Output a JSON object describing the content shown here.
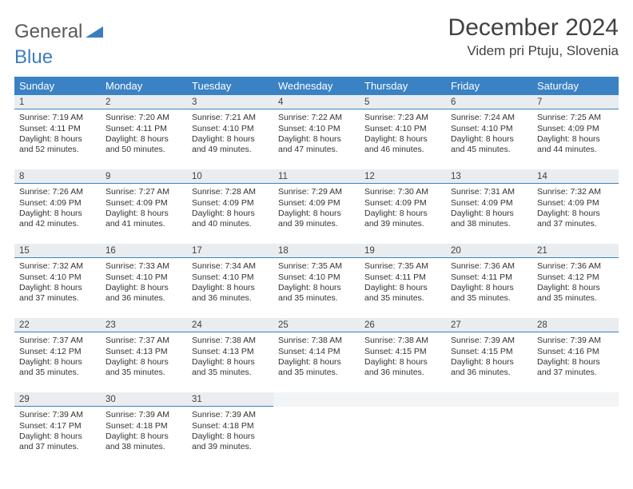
{
  "brand": {
    "word1": "General",
    "word2": "Blue"
  },
  "title": "December 2024",
  "location": "Videm pri Ptuju, Slovenia",
  "colors": {
    "header_bg": "#3a82c4",
    "daybar_bg": "#e9edf0",
    "daybar_border": "#3a82c4",
    "text": "#333333",
    "title_text": "#414141",
    "brand_gray": "#5a5a5a",
    "brand_blue": "#3a7ebf",
    "empty_bg": "#f2f4f6"
  },
  "weekdays": [
    "Sunday",
    "Monday",
    "Tuesday",
    "Wednesday",
    "Thursday",
    "Friday",
    "Saturday"
  ],
  "weeks": [
    [
      {
        "n": "1",
        "sr": "7:19 AM",
        "ss": "4:11 PM",
        "dl": "8 hours and 52 minutes."
      },
      {
        "n": "2",
        "sr": "7:20 AM",
        "ss": "4:11 PM",
        "dl": "8 hours and 50 minutes."
      },
      {
        "n": "3",
        "sr": "7:21 AM",
        "ss": "4:10 PM",
        "dl": "8 hours and 49 minutes."
      },
      {
        "n": "4",
        "sr": "7:22 AM",
        "ss": "4:10 PM",
        "dl": "8 hours and 47 minutes."
      },
      {
        "n": "5",
        "sr": "7:23 AM",
        "ss": "4:10 PM",
        "dl": "8 hours and 46 minutes."
      },
      {
        "n": "6",
        "sr": "7:24 AM",
        "ss": "4:10 PM",
        "dl": "8 hours and 45 minutes."
      },
      {
        "n": "7",
        "sr": "7:25 AM",
        "ss": "4:09 PM",
        "dl": "8 hours and 44 minutes."
      }
    ],
    [
      {
        "n": "8",
        "sr": "7:26 AM",
        "ss": "4:09 PM",
        "dl": "8 hours and 42 minutes."
      },
      {
        "n": "9",
        "sr": "7:27 AM",
        "ss": "4:09 PM",
        "dl": "8 hours and 41 minutes."
      },
      {
        "n": "10",
        "sr": "7:28 AM",
        "ss": "4:09 PM",
        "dl": "8 hours and 40 minutes."
      },
      {
        "n": "11",
        "sr": "7:29 AM",
        "ss": "4:09 PM",
        "dl": "8 hours and 39 minutes."
      },
      {
        "n": "12",
        "sr": "7:30 AM",
        "ss": "4:09 PM",
        "dl": "8 hours and 39 minutes."
      },
      {
        "n": "13",
        "sr": "7:31 AM",
        "ss": "4:09 PM",
        "dl": "8 hours and 38 minutes."
      },
      {
        "n": "14",
        "sr": "7:32 AM",
        "ss": "4:09 PM",
        "dl": "8 hours and 37 minutes."
      }
    ],
    [
      {
        "n": "15",
        "sr": "7:32 AM",
        "ss": "4:10 PM",
        "dl": "8 hours and 37 minutes."
      },
      {
        "n": "16",
        "sr": "7:33 AM",
        "ss": "4:10 PM",
        "dl": "8 hours and 36 minutes."
      },
      {
        "n": "17",
        "sr": "7:34 AM",
        "ss": "4:10 PM",
        "dl": "8 hours and 36 minutes."
      },
      {
        "n": "18",
        "sr": "7:35 AM",
        "ss": "4:10 PM",
        "dl": "8 hours and 35 minutes."
      },
      {
        "n": "19",
        "sr": "7:35 AM",
        "ss": "4:11 PM",
        "dl": "8 hours and 35 minutes."
      },
      {
        "n": "20",
        "sr": "7:36 AM",
        "ss": "4:11 PM",
        "dl": "8 hours and 35 minutes."
      },
      {
        "n": "21",
        "sr": "7:36 AM",
        "ss": "4:12 PM",
        "dl": "8 hours and 35 minutes."
      }
    ],
    [
      {
        "n": "22",
        "sr": "7:37 AM",
        "ss": "4:12 PM",
        "dl": "8 hours and 35 minutes."
      },
      {
        "n": "23",
        "sr": "7:37 AM",
        "ss": "4:13 PM",
        "dl": "8 hours and 35 minutes."
      },
      {
        "n": "24",
        "sr": "7:38 AM",
        "ss": "4:13 PM",
        "dl": "8 hours and 35 minutes."
      },
      {
        "n": "25",
        "sr": "7:38 AM",
        "ss": "4:14 PM",
        "dl": "8 hours and 35 minutes."
      },
      {
        "n": "26",
        "sr": "7:38 AM",
        "ss": "4:15 PM",
        "dl": "8 hours and 36 minutes."
      },
      {
        "n": "27",
        "sr": "7:39 AM",
        "ss": "4:15 PM",
        "dl": "8 hours and 36 minutes."
      },
      {
        "n": "28",
        "sr": "7:39 AM",
        "ss": "4:16 PM",
        "dl": "8 hours and 37 minutes."
      }
    ],
    [
      {
        "n": "29",
        "sr": "7:39 AM",
        "ss": "4:17 PM",
        "dl": "8 hours and 37 minutes."
      },
      {
        "n": "30",
        "sr": "7:39 AM",
        "ss": "4:18 PM",
        "dl": "8 hours and 38 minutes."
      },
      {
        "n": "31",
        "sr": "7:39 AM",
        "ss": "4:18 PM",
        "dl": "8 hours and 39 minutes."
      },
      null,
      null,
      null,
      null
    ]
  ],
  "labels": {
    "sunrise": "Sunrise:",
    "sunset": "Sunset:",
    "daylight": "Daylight:"
  }
}
